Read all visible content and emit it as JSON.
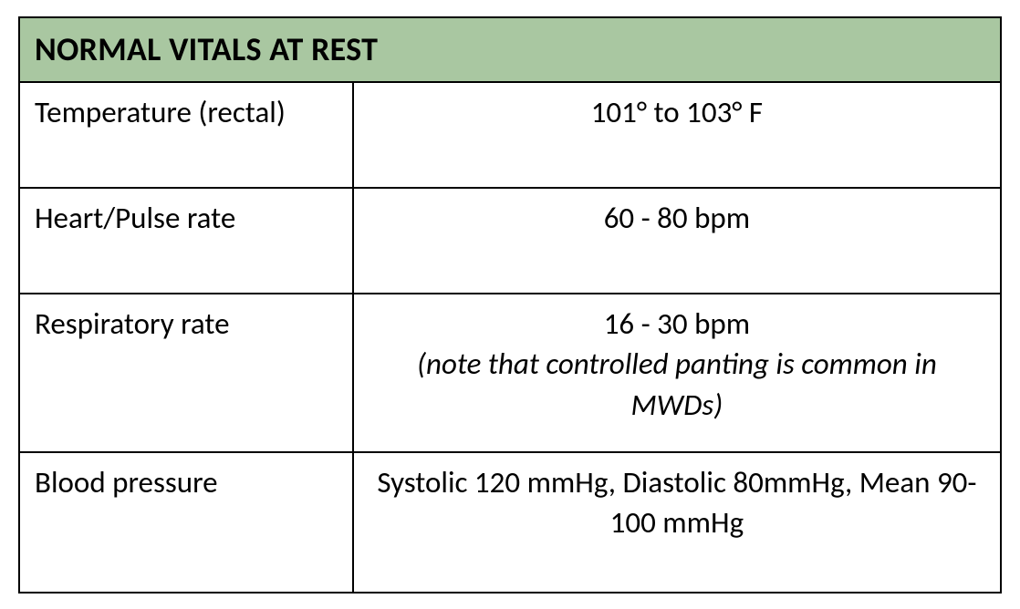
{
  "table": {
    "title": "NORMAL VITALS AT REST",
    "header_bg": "#a9c7a1",
    "border_color": "#000000",
    "font_family": "Calibri",
    "title_fontsize_pt": 27,
    "cell_fontsize_pt": 25,
    "col_widths_pct": [
      34,
      66
    ],
    "rows": [
      {
        "label": "Temperature (rectal)",
        "value": "101° to 103° F",
        "note": ""
      },
      {
        "label": "Heart/Pulse rate",
        "value": "60 - 80 bpm",
        "note": ""
      },
      {
        "label": "Respiratory rate",
        "value": "16 - 30 bpm",
        "note": "(note that controlled panting is common in MWDs)"
      },
      {
        "label": "Blood pressure",
        "value": "Systolic 120 mmHg, Diastolic 80mmHg, Mean 90-100 mmHg",
        "note": ""
      }
    ]
  }
}
